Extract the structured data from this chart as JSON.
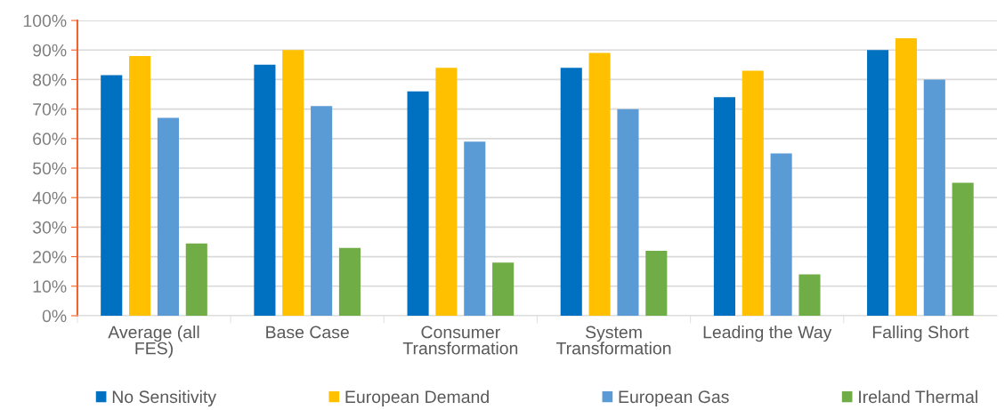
{
  "chart_data": {
    "type": "bar",
    "categories": [
      "Average (all\nFES)",
      "Base Case",
      "Consumer\nTransformation",
      "System\nTransformation",
      "Leading the Way",
      "Falling Short"
    ],
    "series": [
      {
        "name": "No Sensitivity",
        "color": "#0070c0",
        "values": [
          81.5,
          85,
          76,
          84,
          74,
          90
        ]
      },
      {
        "name": "European Demand",
        "color": "#ffc000",
        "values": [
          88,
          90,
          84,
          89,
          83,
          94
        ]
      },
      {
        "name": "European Gas",
        "color": "#5b9bd5",
        "values": [
          67,
          71,
          59,
          70,
          55,
          80
        ]
      },
      {
        "name": "Ireland Thermal",
        "color": "#70ad47",
        "values": [
          24.5,
          23,
          18,
          22,
          14,
          45
        ]
      }
    ],
    "ylim": [
      0,
      100
    ],
    "yticks": [
      {
        "value": 0,
        "label": "0%"
      },
      {
        "value": 10,
        "label": "10%"
      },
      {
        "value": 20,
        "label": "20%"
      },
      {
        "value": 30,
        "label": "30%"
      },
      {
        "value": 40,
        "label": "40%"
      },
      {
        "value": 50,
        "label": "50%"
      },
      {
        "value": 60,
        "label": "60%"
      },
      {
        "value": 70,
        "label": "70%"
      },
      {
        "value": 80,
        "label": "80%"
      },
      {
        "value": 90,
        "label": "90%"
      },
      {
        "value": 100,
        "label": "100%"
      }
    ],
    "grid": "y",
    "legend": "bottom"
  }
}
